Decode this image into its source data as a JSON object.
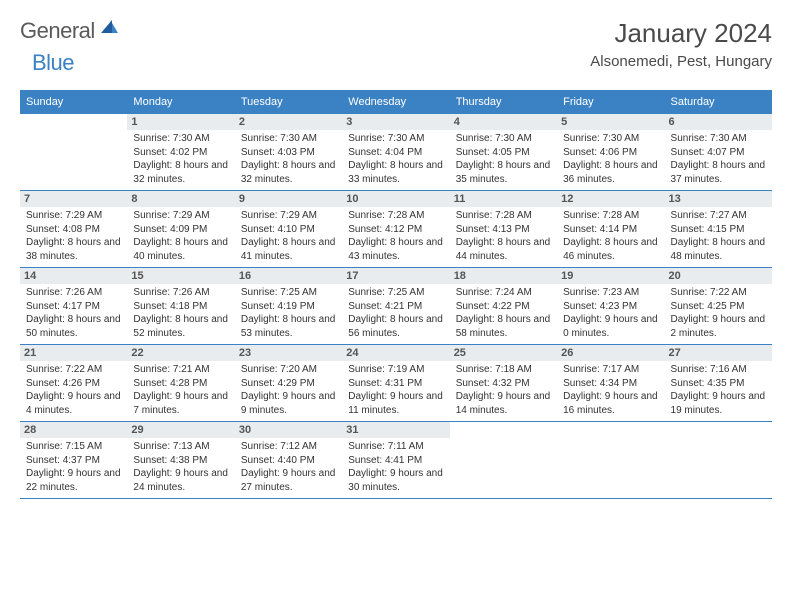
{
  "logo": {
    "general": "General",
    "blue": "Blue"
  },
  "title": "January 2024",
  "location": "Alsonemedi, Pest, Hungary",
  "colors": {
    "header_bg": "#3b82c4",
    "header_text": "#ffffff",
    "daynum_bg": "#e8ecef",
    "border": "#3b82c4",
    "title_color": "#4a4a4a"
  },
  "weekdays": [
    "Sunday",
    "Monday",
    "Tuesday",
    "Wednesday",
    "Thursday",
    "Friday",
    "Saturday"
  ],
  "weeks": [
    [
      {
        "n": "",
        "sunrise": "",
        "sunset": "",
        "daylight": ""
      },
      {
        "n": "1",
        "sunrise": "Sunrise: 7:30 AM",
        "sunset": "Sunset: 4:02 PM",
        "daylight": "Daylight: 8 hours and 32 minutes."
      },
      {
        "n": "2",
        "sunrise": "Sunrise: 7:30 AM",
        "sunset": "Sunset: 4:03 PM",
        "daylight": "Daylight: 8 hours and 32 minutes."
      },
      {
        "n": "3",
        "sunrise": "Sunrise: 7:30 AM",
        "sunset": "Sunset: 4:04 PM",
        "daylight": "Daylight: 8 hours and 33 minutes."
      },
      {
        "n": "4",
        "sunrise": "Sunrise: 7:30 AM",
        "sunset": "Sunset: 4:05 PM",
        "daylight": "Daylight: 8 hours and 35 minutes."
      },
      {
        "n": "5",
        "sunrise": "Sunrise: 7:30 AM",
        "sunset": "Sunset: 4:06 PM",
        "daylight": "Daylight: 8 hours and 36 minutes."
      },
      {
        "n": "6",
        "sunrise": "Sunrise: 7:30 AM",
        "sunset": "Sunset: 4:07 PM",
        "daylight": "Daylight: 8 hours and 37 minutes."
      }
    ],
    [
      {
        "n": "7",
        "sunrise": "Sunrise: 7:29 AM",
        "sunset": "Sunset: 4:08 PM",
        "daylight": "Daylight: 8 hours and 38 minutes."
      },
      {
        "n": "8",
        "sunrise": "Sunrise: 7:29 AM",
        "sunset": "Sunset: 4:09 PM",
        "daylight": "Daylight: 8 hours and 40 minutes."
      },
      {
        "n": "9",
        "sunrise": "Sunrise: 7:29 AM",
        "sunset": "Sunset: 4:10 PM",
        "daylight": "Daylight: 8 hours and 41 minutes."
      },
      {
        "n": "10",
        "sunrise": "Sunrise: 7:28 AM",
        "sunset": "Sunset: 4:12 PM",
        "daylight": "Daylight: 8 hours and 43 minutes."
      },
      {
        "n": "11",
        "sunrise": "Sunrise: 7:28 AM",
        "sunset": "Sunset: 4:13 PM",
        "daylight": "Daylight: 8 hours and 44 minutes."
      },
      {
        "n": "12",
        "sunrise": "Sunrise: 7:28 AM",
        "sunset": "Sunset: 4:14 PM",
        "daylight": "Daylight: 8 hours and 46 minutes."
      },
      {
        "n": "13",
        "sunrise": "Sunrise: 7:27 AM",
        "sunset": "Sunset: 4:15 PM",
        "daylight": "Daylight: 8 hours and 48 minutes."
      }
    ],
    [
      {
        "n": "14",
        "sunrise": "Sunrise: 7:26 AM",
        "sunset": "Sunset: 4:17 PM",
        "daylight": "Daylight: 8 hours and 50 minutes."
      },
      {
        "n": "15",
        "sunrise": "Sunrise: 7:26 AM",
        "sunset": "Sunset: 4:18 PM",
        "daylight": "Daylight: 8 hours and 52 minutes."
      },
      {
        "n": "16",
        "sunrise": "Sunrise: 7:25 AM",
        "sunset": "Sunset: 4:19 PM",
        "daylight": "Daylight: 8 hours and 53 minutes."
      },
      {
        "n": "17",
        "sunrise": "Sunrise: 7:25 AM",
        "sunset": "Sunset: 4:21 PM",
        "daylight": "Daylight: 8 hours and 56 minutes."
      },
      {
        "n": "18",
        "sunrise": "Sunrise: 7:24 AM",
        "sunset": "Sunset: 4:22 PM",
        "daylight": "Daylight: 8 hours and 58 minutes."
      },
      {
        "n": "19",
        "sunrise": "Sunrise: 7:23 AM",
        "sunset": "Sunset: 4:23 PM",
        "daylight": "Daylight: 9 hours and 0 minutes."
      },
      {
        "n": "20",
        "sunrise": "Sunrise: 7:22 AM",
        "sunset": "Sunset: 4:25 PM",
        "daylight": "Daylight: 9 hours and 2 minutes."
      }
    ],
    [
      {
        "n": "21",
        "sunrise": "Sunrise: 7:22 AM",
        "sunset": "Sunset: 4:26 PM",
        "daylight": "Daylight: 9 hours and 4 minutes."
      },
      {
        "n": "22",
        "sunrise": "Sunrise: 7:21 AM",
        "sunset": "Sunset: 4:28 PM",
        "daylight": "Daylight: 9 hours and 7 minutes."
      },
      {
        "n": "23",
        "sunrise": "Sunrise: 7:20 AM",
        "sunset": "Sunset: 4:29 PM",
        "daylight": "Daylight: 9 hours and 9 minutes."
      },
      {
        "n": "24",
        "sunrise": "Sunrise: 7:19 AM",
        "sunset": "Sunset: 4:31 PM",
        "daylight": "Daylight: 9 hours and 11 minutes."
      },
      {
        "n": "25",
        "sunrise": "Sunrise: 7:18 AM",
        "sunset": "Sunset: 4:32 PM",
        "daylight": "Daylight: 9 hours and 14 minutes."
      },
      {
        "n": "26",
        "sunrise": "Sunrise: 7:17 AM",
        "sunset": "Sunset: 4:34 PM",
        "daylight": "Daylight: 9 hours and 16 minutes."
      },
      {
        "n": "27",
        "sunrise": "Sunrise: 7:16 AM",
        "sunset": "Sunset: 4:35 PM",
        "daylight": "Daylight: 9 hours and 19 minutes."
      }
    ],
    [
      {
        "n": "28",
        "sunrise": "Sunrise: 7:15 AM",
        "sunset": "Sunset: 4:37 PM",
        "daylight": "Daylight: 9 hours and 22 minutes."
      },
      {
        "n": "29",
        "sunrise": "Sunrise: 7:13 AM",
        "sunset": "Sunset: 4:38 PM",
        "daylight": "Daylight: 9 hours and 24 minutes."
      },
      {
        "n": "30",
        "sunrise": "Sunrise: 7:12 AM",
        "sunset": "Sunset: 4:40 PM",
        "daylight": "Daylight: 9 hours and 27 minutes."
      },
      {
        "n": "31",
        "sunrise": "Sunrise: 7:11 AM",
        "sunset": "Sunset: 4:41 PM",
        "daylight": "Daylight: 9 hours and 30 minutes."
      },
      {
        "n": "",
        "sunrise": "",
        "sunset": "",
        "daylight": ""
      },
      {
        "n": "",
        "sunrise": "",
        "sunset": "",
        "daylight": ""
      },
      {
        "n": "",
        "sunrise": "",
        "sunset": "",
        "daylight": ""
      }
    ]
  ]
}
